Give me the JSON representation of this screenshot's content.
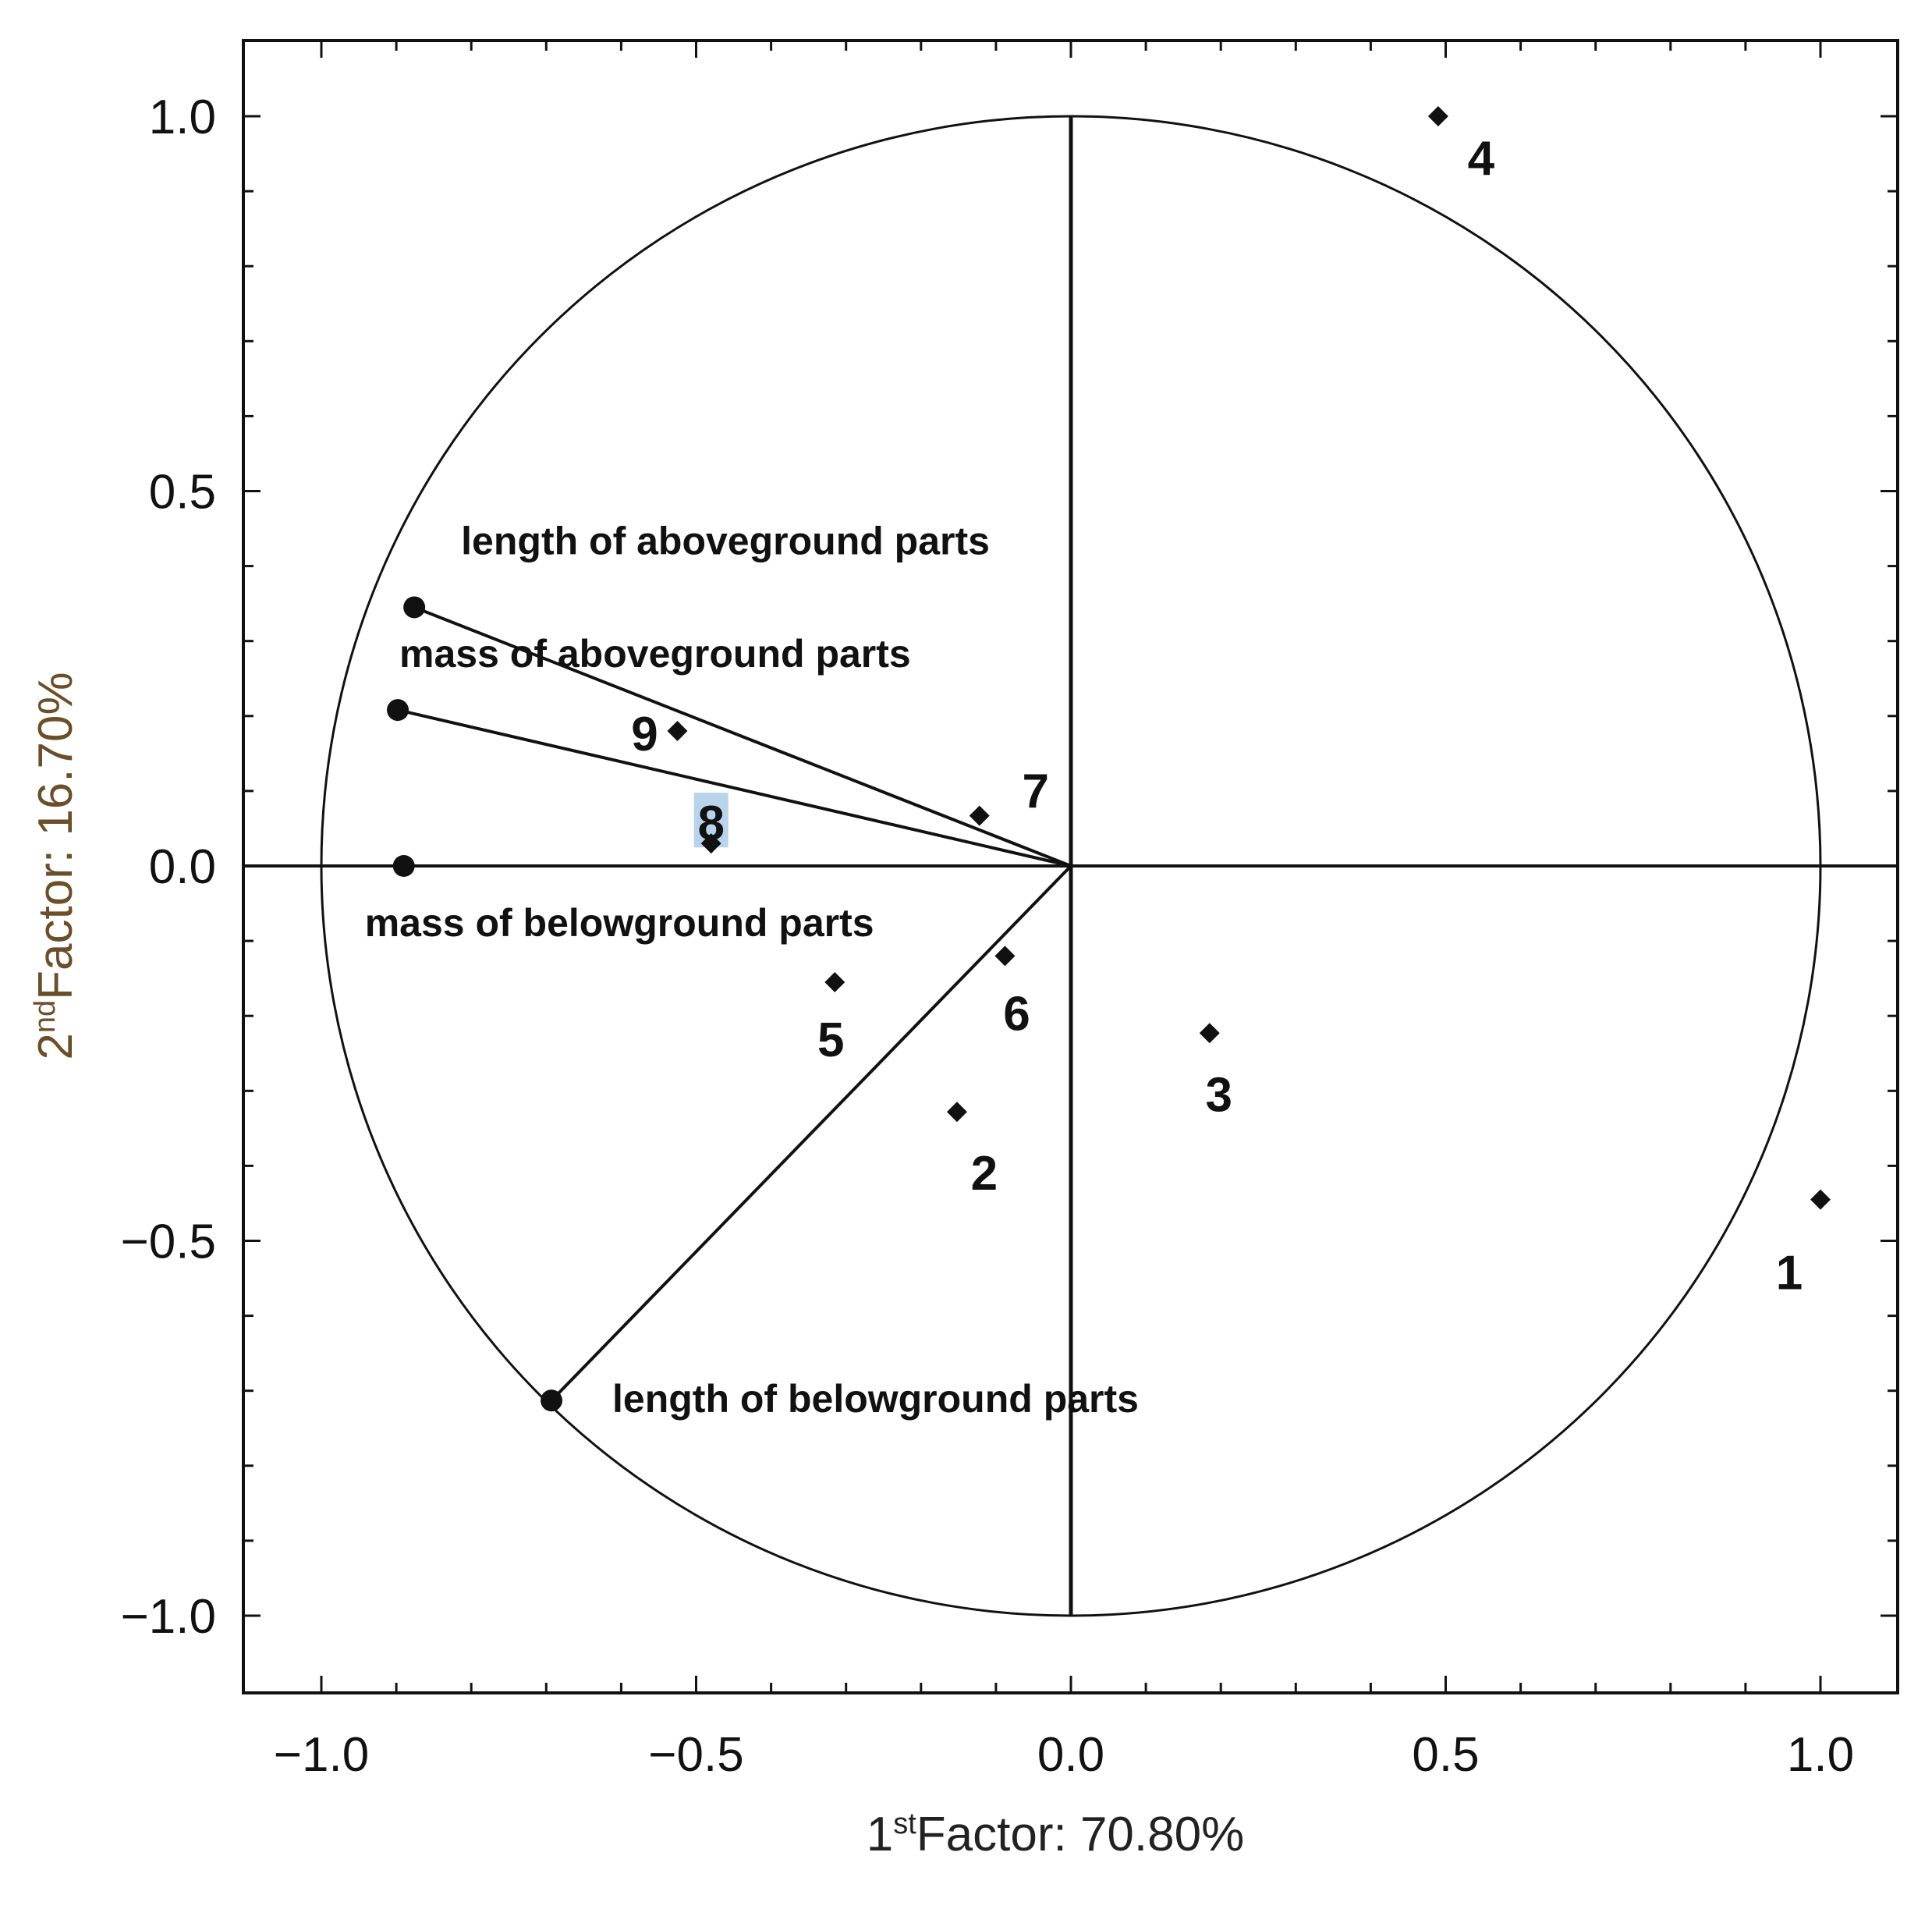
{
  "chart_data": {
    "type": "scatter",
    "subtype": "pca-biplot",
    "title": "",
    "xlabel": {
      "text": "Factor: 70.80%",
      "ordinal": "1",
      "ordinal_suffix": "st"
    },
    "ylabel": {
      "text": "Factor: 16.70%",
      "ordinal": "2",
      "ordinal_suffix": "nd"
    },
    "xlim": [
      -1.1,
      1.1
    ],
    "ylim": [
      -1.1,
      1.1
    ],
    "xticks": [
      {
        "value": -1.0,
        "label": "−1.0"
      },
      {
        "value": -0.5,
        "label": "−0.5"
      },
      {
        "value": 0.0,
        "label": "0.0"
      },
      {
        "value": 0.5,
        "label": "0.5"
      },
      {
        "value": 1.0,
        "label": "1.0"
      }
    ],
    "yticks": [
      {
        "value": 1.0,
        "label": "1.0"
      },
      {
        "value": 0.5,
        "label": "0.5"
      },
      {
        "value": 0.0,
        "label": "0.0"
      },
      {
        "value": -0.5,
        "label": "−0.5"
      },
      {
        "value": -1.0,
        "label": "−1.0"
      }
    ],
    "minor_tick_step": 0.1,
    "unit_circle": true,
    "grid": false,
    "variables": [
      {
        "name": "length of aboveground parts",
        "x": -0.876,
        "y": 0.345
      },
      {
        "name": "mass of aboveground parts",
        "x": -0.898,
        "y": 0.208
      },
      {
        "name": "mass of belowground parts",
        "x": -0.89,
        "y": 0.0
      },
      {
        "name": "length of belowground parts",
        "x": -0.693,
        "y": -0.713
      }
    ],
    "observations": [
      {
        "label": "1",
        "x": 1.0,
        "y": -0.445
      },
      {
        "label": "2",
        "x": -0.152,
        "y": -0.328
      },
      {
        "label": "3",
        "x": 0.185,
        "y": -0.223
      },
      {
        "label": "4",
        "x": 0.49,
        "y": 1.0
      },
      {
        "label": "5",
        "x": -0.315,
        "y": -0.155
      },
      {
        "label": "6",
        "x": -0.088,
        "y": -0.12
      },
      {
        "label": "7",
        "x": -0.122,
        "y": 0.067
      },
      {
        "label": "8",
        "x": -0.48,
        "y": 0.03
      },
      {
        "label": "9",
        "x": -0.525,
        "y": 0.18
      }
    ]
  }
}
